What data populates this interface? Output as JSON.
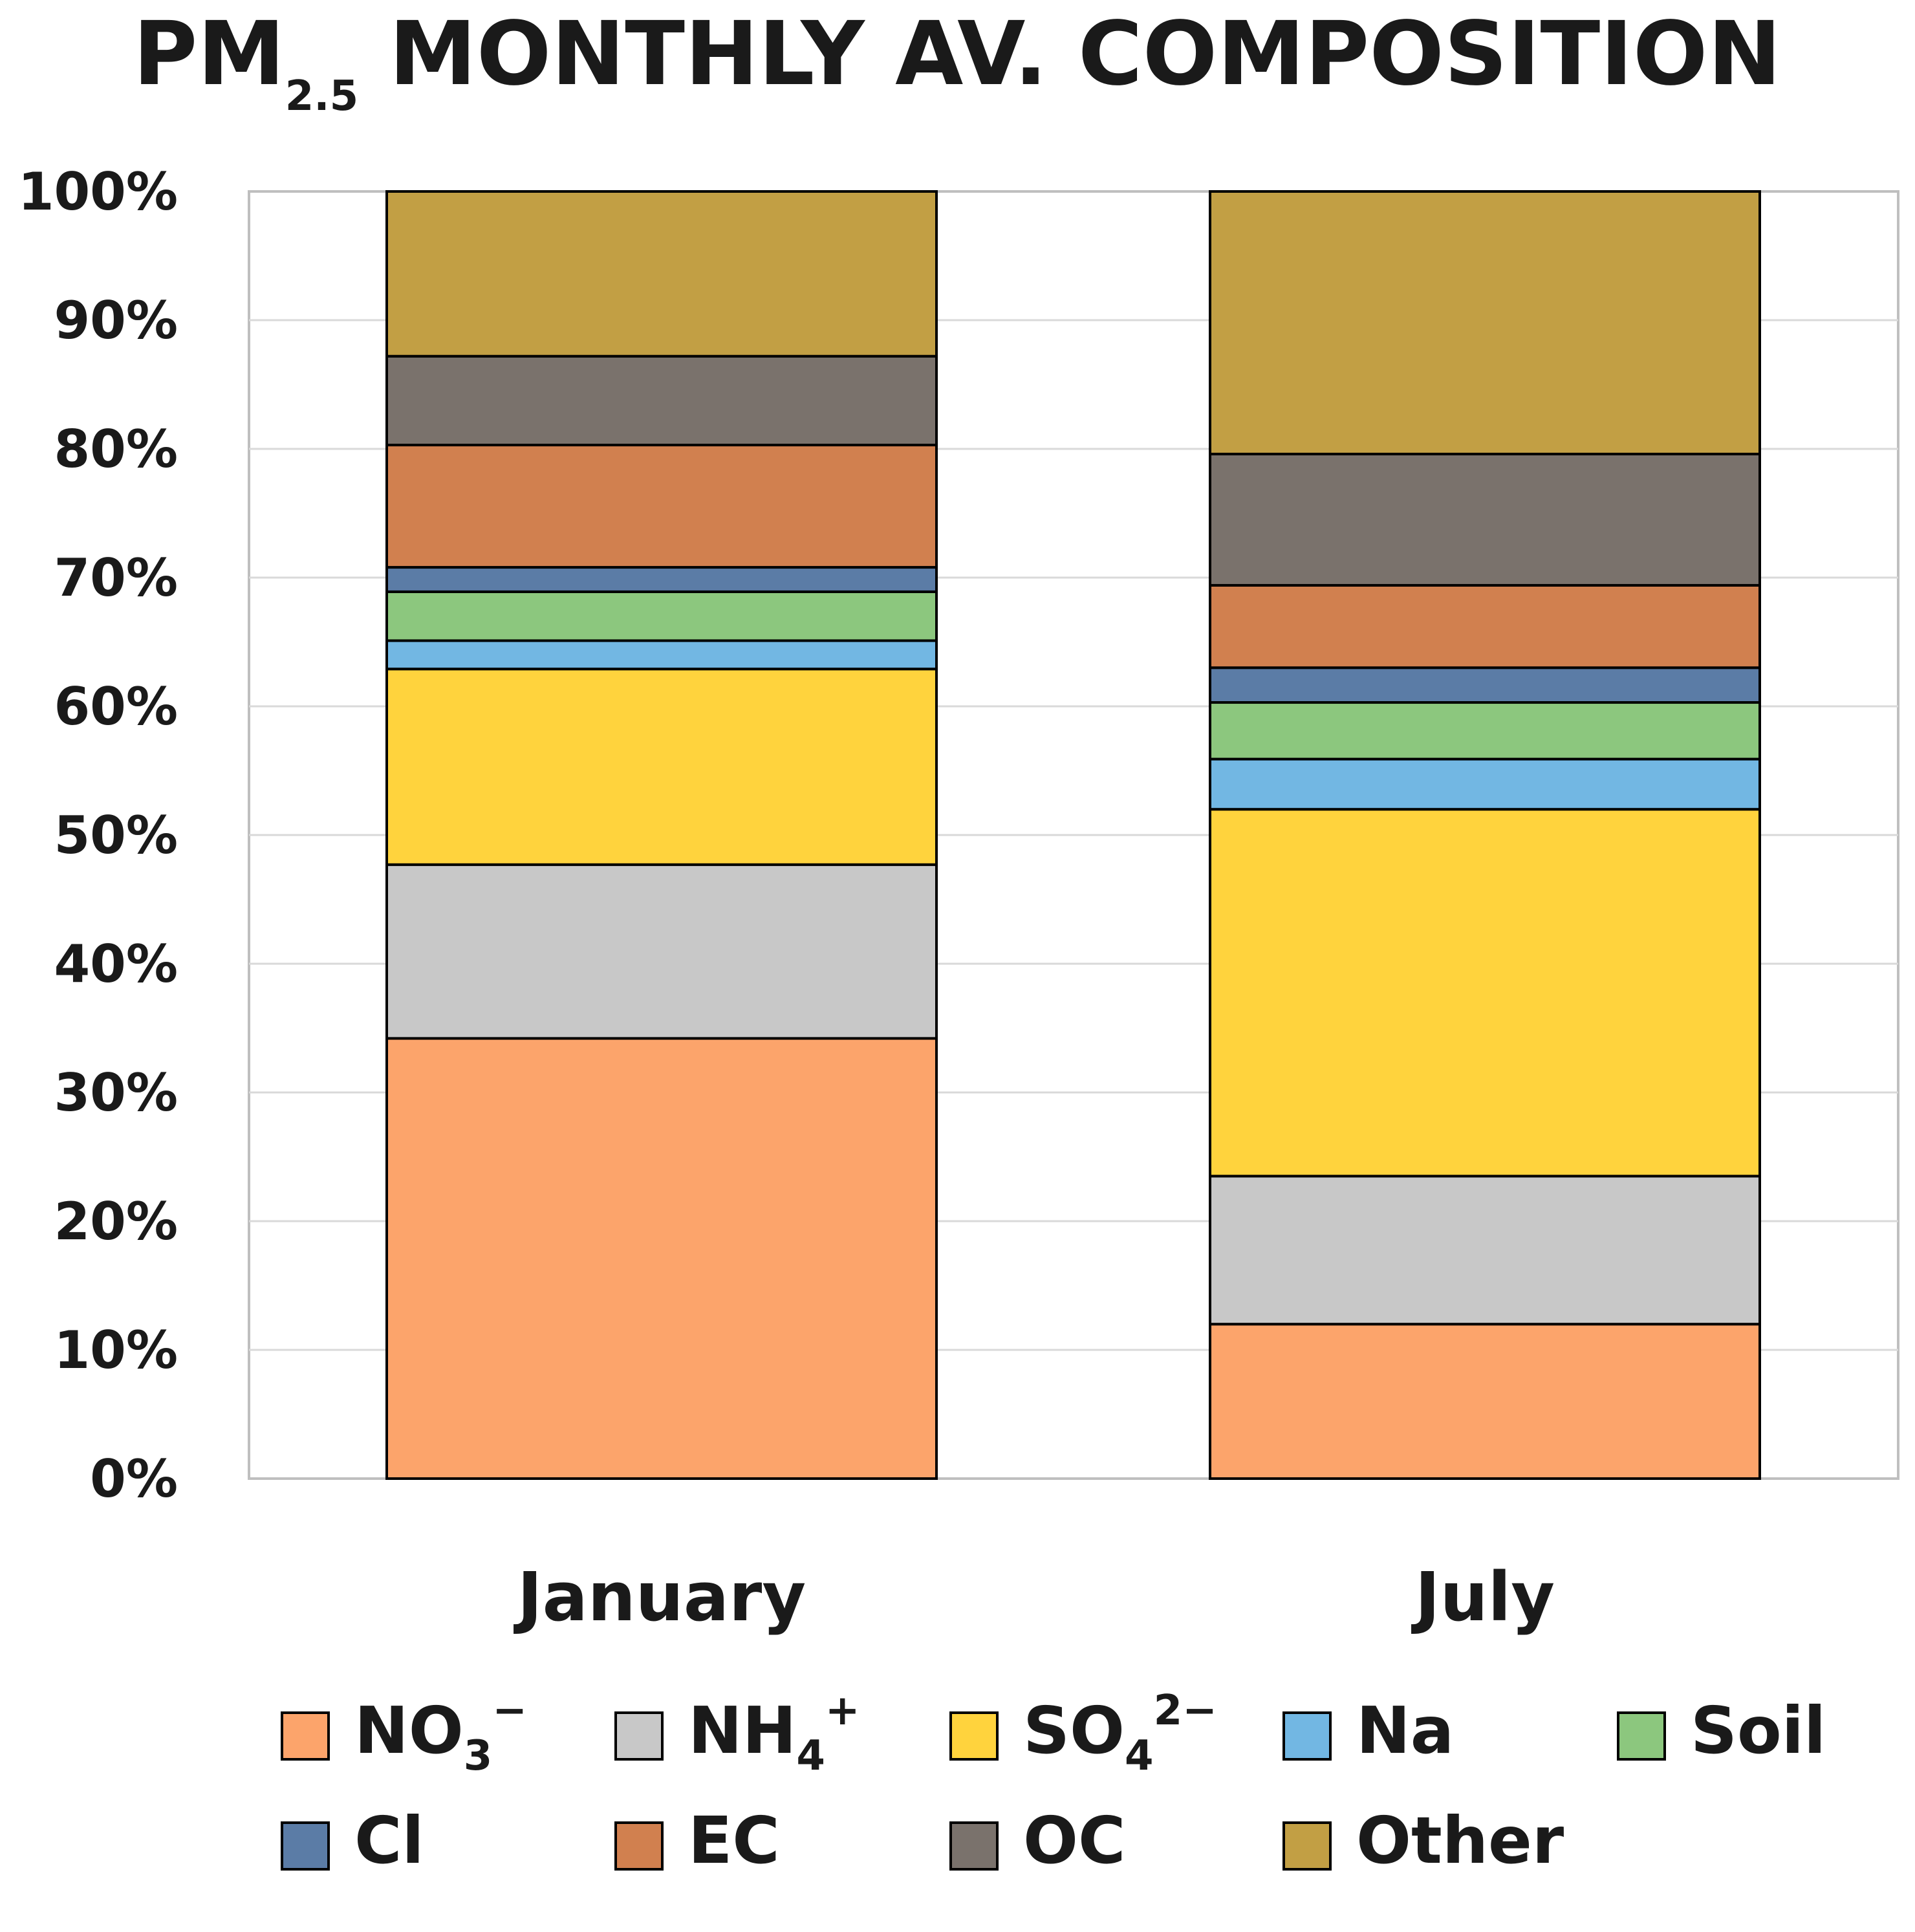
{
  "chart_data": {
    "type": "bar",
    "stacked": true,
    "title": "PM2.5 MONTHLY AV. COMPOSITION",
    "title_parts": {
      "main": "PM",
      "sub": "2.5",
      "rest": " MONTHLY AV. COMPOSITION"
    },
    "xlabel": "",
    "ylabel": "",
    "ylim": [
      0,
      100
    ],
    "y_ticks": [
      "0%",
      "10%",
      "20%",
      "30%",
      "40%",
      "50%",
      "60%",
      "70%",
      "80%",
      "90%",
      "100%"
    ],
    "grid": true,
    "legend_position": "bottom",
    "categories": [
      "January",
      "July"
    ],
    "series": [
      {
        "name": "NO3−",
        "base": "NO",
        "sub": "3",
        "sup": "−",
        "color": "#FCA46B",
        "values": [
          34.2,
          12.0
        ]
      },
      {
        "name": "NH4+",
        "base": "NH",
        "sub": "4",
        "sup": "+",
        "color": "#C8C8C8",
        "values": [
          13.5,
          11.5
        ]
      },
      {
        "name": "SO42−",
        "base": "SO",
        "sub": "4",
        "sup": "2−",
        "color": "#FFD33D",
        "values": [
          15.2,
          28.5
        ]
      },
      {
        "name": "Na",
        "base": "Na",
        "sub": "",
        "sup": "",
        "color": "#72B7E3",
        "values": [
          2.2,
          3.9
        ]
      },
      {
        "name": "Soil",
        "base": "Soil",
        "sub": "",
        "sup": "",
        "color": "#8CC77E",
        "values": [
          3.8,
          4.4
        ]
      },
      {
        "name": "Cl",
        "base": "Cl",
        "sub": "",
        "sup": "",
        "color": "#5B7CA6",
        "values": [
          1.9,
          2.7
        ]
      },
      {
        "name": "EC",
        "base": "EC",
        "sub": "",
        "sup": "",
        "color": "#D1804F",
        "values": [
          9.5,
          6.4
        ]
      },
      {
        "name": "OC",
        "base": "OC",
        "sub": "",
        "sup": "",
        "color": "#7A726C",
        "values": [
          6.9,
          10.2
        ]
      },
      {
        "name": "Other",
        "base": "Other",
        "sub": "",
        "sup": "",
        "color": "#C29F44",
        "values": [
          12.8,
          20.4
        ]
      }
    ]
  }
}
